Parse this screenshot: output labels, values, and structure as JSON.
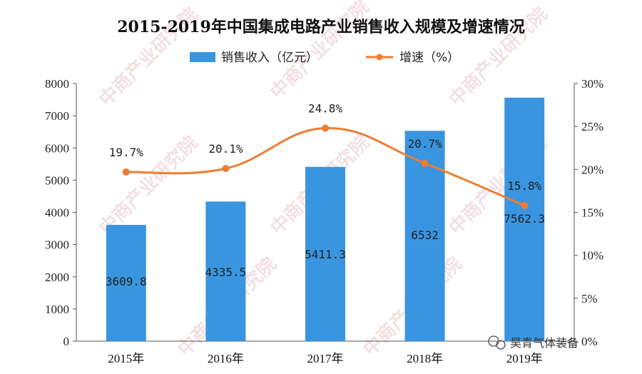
{
  "chart_data": {
    "type": "bar+line",
    "title": "2015-2019年中国集成电路产业销售收入规模及增速情况",
    "categories": [
      "2015年",
      "2016年",
      "2017年",
      "2018年",
      "2019年"
    ],
    "series": [
      {
        "name": "销售收入（亿元）",
        "type": "bar",
        "axis": "left",
        "color": "#3a95e0",
        "values": [
          3609.8,
          4335.5,
          5411.3,
          6532,
          7562.3
        ],
        "labels": [
          "3609.8",
          "4335.5",
          "5411.3",
          "6532",
          "7562.3"
        ]
      },
      {
        "name": "增速（%）",
        "type": "line",
        "axis": "right",
        "color": "#ed7d31",
        "values": [
          19.7,
          20.1,
          24.8,
          20.7,
          15.8
        ],
        "labels": [
          "19.7%",
          "20.1%",
          "24.8%",
          "20.7%",
          "15.8%"
        ]
      }
    ],
    "y_left": {
      "min": 0,
      "max": 8000,
      "ticks": [
        "0",
        "1000",
        "2000",
        "3000",
        "4000",
        "5000",
        "6000",
        "7000",
        "8000"
      ]
    },
    "y_right": {
      "min": 0,
      "max": 30,
      "ticks": [
        "0%",
        "5%",
        "10%",
        "15%",
        "20%",
        "25%",
        "30%"
      ]
    },
    "grid": false,
    "legend_position": "top-center"
  },
  "watermark": {
    "text": "中商产业研究院"
  },
  "branding": {
    "text": "昊青气体装备",
    "icon": "wechat-icon"
  }
}
